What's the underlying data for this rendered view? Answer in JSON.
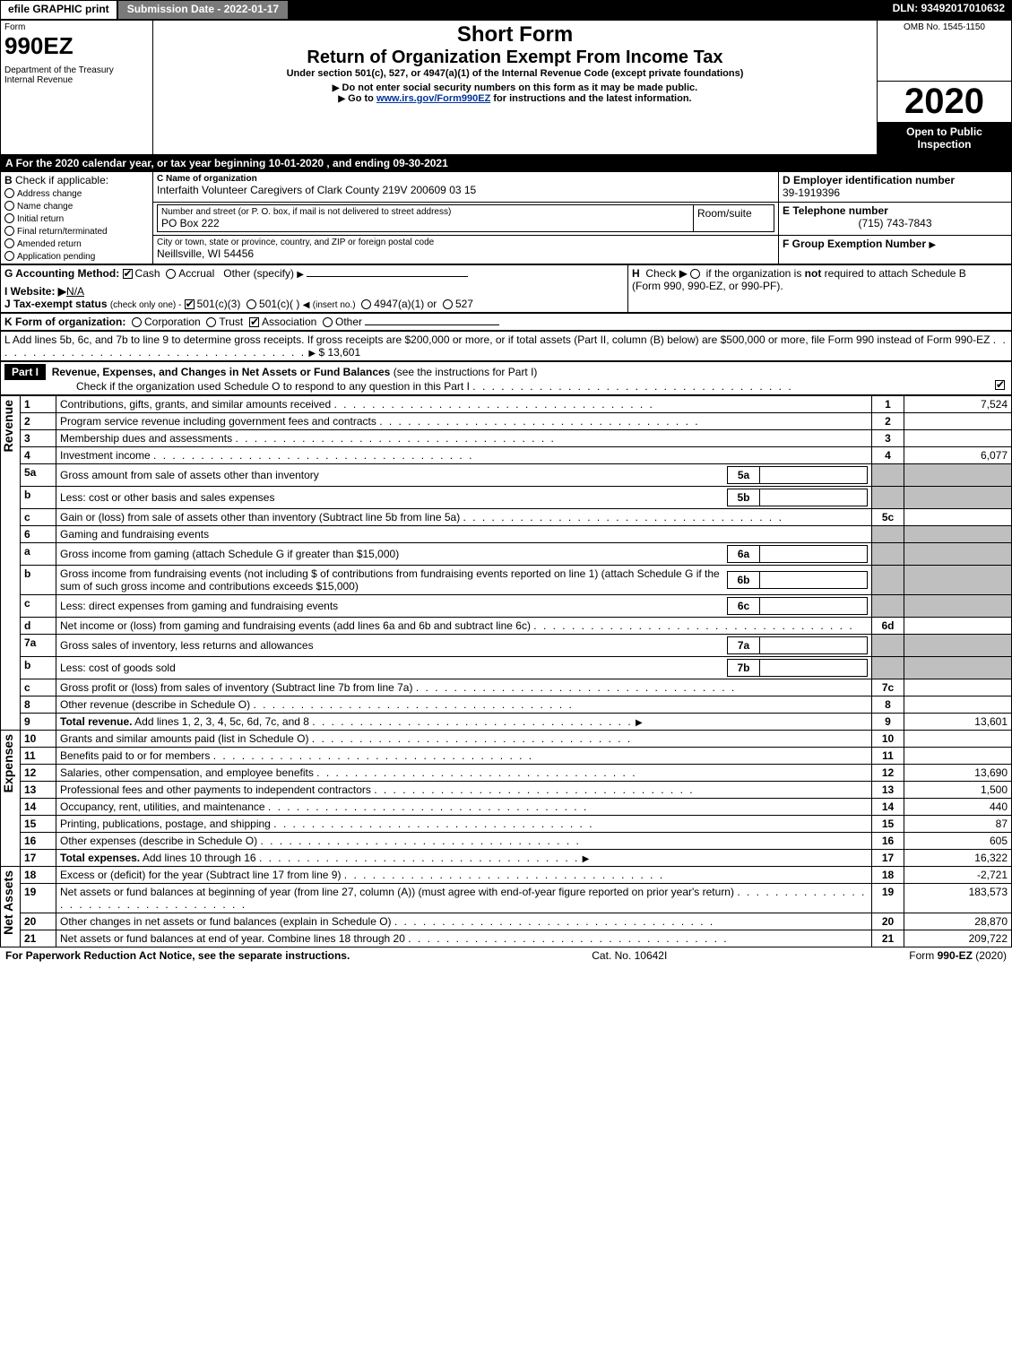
{
  "topbar": {
    "efile": "efile GRAPHIC print",
    "submission": "Submission Date - 2022-01-17",
    "dln": "DLN: 93492017010632"
  },
  "header": {
    "form_word": "Form",
    "form_no": "990EZ",
    "dept": "Department of the Treasury",
    "irs": "Internal Revenue",
    "title1": "Short Form",
    "title2": "Return of Organization Exempt From Income Tax",
    "subtitle": "Under section 501(c), 527, or 4947(a)(1) of the Internal Revenue Code (except private foundations)",
    "warn": "Do not enter social security numbers on this form as it may be made public.",
    "goto_pre": "Go to ",
    "goto_link": "www.irs.gov/Form990EZ",
    "goto_post": " for instructions and the latest information.",
    "omb": "OMB No. 1545-1150",
    "year": "2020",
    "open": "Open to Public Inspection"
  },
  "lineA": "For the 2020 calendar year, or tax year beginning 10-01-2020 , and ending 09-30-2021",
  "boxB": {
    "label": "Check if applicable:",
    "items": [
      "Address change",
      "Name change",
      "Initial return",
      "Final return/terminated",
      "Amended return",
      "Application pending"
    ]
  },
  "boxC": {
    "label": "C Name of organization",
    "name": "Interfaith Volunteer Caregivers of Clark County 219V 200609 03 15",
    "addr_label": "Number and street (or P. O. box, if mail is not delivered to street address)",
    "room_label": "Room/suite",
    "addr": "PO Box 222",
    "city_label": "City or town, state or province, country, and ZIP or foreign postal code",
    "city": "Neillsville, WI  54456"
  },
  "boxD": {
    "label": "D Employer identification number",
    "value": "39-1919396"
  },
  "boxE": {
    "label": "E Telephone number",
    "value": "(715) 743-7843"
  },
  "boxF": {
    "label": "F Group Exemption Number",
    "arrow": "▶"
  },
  "lineG": {
    "label": "G Accounting Method:",
    "cash": "Cash",
    "accrual": "Accrual",
    "other": "Other (specify)"
  },
  "lineH": {
    "label": "H",
    "text1": "Check ▶",
    "text2": "if the organization is ",
    "not": "not",
    "text3": " required to attach Schedule B",
    "text4": "(Form 990, 990-EZ, or 990-PF)."
  },
  "lineI": {
    "label": "I Website: ▶",
    "value": "N/A"
  },
  "lineJ": {
    "label": "J Tax-exempt status",
    "hint": "(check only one) -",
    "o1": "501(c)(3)",
    "o2": "501(c)(",
    "o2b": ")",
    "ins": "(insert no.)",
    "o3": "4947(a)(1) or",
    "o4": "527"
  },
  "lineK": {
    "label": "K Form of organization:",
    "o1": "Corporation",
    "o2": "Trust",
    "o3": "Association",
    "o4": "Other"
  },
  "lineL": {
    "text": "L Add lines 5b, 6c, and 7b to line 9 to determine gross receipts. If gross receipts are $200,000 or more, or if total assets (Part II, column (B) below) are $500,000 or more, file Form 990 instead of Form 990-EZ",
    "amount": "$ 13,601"
  },
  "partI": {
    "label": "Part I",
    "title": "Revenue, Expenses, and Changes in Net Assets or Fund Balances",
    "title_paren": "(see the instructions for Part I)",
    "check_line": "Check if the organization used Schedule O to respond to any question in this Part I"
  },
  "sections": {
    "revenue_label": "Revenue",
    "expenses_label": "Expenses",
    "netassets_label": "Net Assets"
  },
  "rows": [
    {
      "n": "1",
      "desc": "Contributions, gifts, grants, and similar amounts received",
      "col": "1",
      "val": "7,524"
    },
    {
      "n": "2",
      "desc": "Program service revenue including government fees and contracts",
      "col": "2",
      "val": ""
    },
    {
      "n": "3",
      "desc": "Membership dues and assessments",
      "col": "3",
      "val": ""
    },
    {
      "n": "4",
      "desc": "Investment income",
      "col": "4",
      "val": "6,077"
    },
    {
      "n": "5a",
      "desc": "Gross amount from sale of assets other than inventory",
      "inner": "5a"
    },
    {
      "n": "b",
      "desc": "Less: cost or other basis and sales expenses",
      "inner": "5b"
    },
    {
      "n": "c",
      "desc": "Gain or (loss) from sale of assets other than inventory (Subtract line 5b from line 5a)",
      "col": "5c",
      "val": ""
    },
    {
      "n": "6",
      "desc": "Gaming and fundraising events"
    },
    {
      "n": "a",
      "desc": "Gross income from gaming (attach Schedule G if greater than $15,000)",
      "inner": "6a"
    },
    {
      "n": "b",
      "desc": "Gross income from fundraising events (not including $                            of contributions from fundraising events reported on line 1) (attach Schedule G if the sum of such gross income and contributions exceeds $15,000)",
      "inner": "6b"
    },
    {
      "n": "c",
      "desc": "Less: direct expenses from gaming and fundraising events",
      "inner": "6c"
    },
    {
      "n": "d",
      "desc": "Net income or (loss) from gaming and fundraising events (add lines 6a and 6b and subtract line 6c)",
      "col": "6d",
      "val": ""
    },
    {
      "n": "7a",
      "desc": "Gross sales of inventory, less returns and allowances",
      "inner": "7a"
    },
    {
      "n": "b",
      "desc": "Less: cost of goods sold",
      "inner": "7b"
    },
    {
      "n": "c",
      "desc": "Gross profit or (loss) from sales of inventory (Subtract line 7b from line 7a)",
      "col": "7c",
      "val": ""
    },
    {
      "n": "8",
      "desc": "Other revenue (describe in Schedule O)",
      "col": "8",
      "val": ""
    },
    {
      "n": "9",
      "desc": "Total revenue. Add lines 1, 2, 3, 4, 5c, 6d, 7c, and 8",
      "bold": true,
      "arrow": true,
      "col": "9",
      "val": "13,601"
    },
    {
      "n": "10",
      "desc": "Grants and similar amounts paid (list in Schedule O)",
      "col": "10",
      "val": ""
    },
    {
      "n": "11",
      "desc": "Benefits paid to or for members",
      "col": "11",
      "val": ""
    },
    {
      "n": "12",
      "desc": "Salaries, other compensation, and employee benefits",
      "col": "12",
      "val": "13,690"
    },
    {
      "n": "13",
      "desc": "Professional fees and other payments to independent contractors",
      "col": "13",
      "val": "1,500"
    },
    {
      "n": "14",
      "desc": "Occupancy, rent, utilities, and maintenance",
      "col": "14",
      "val": "440"
    },
    {
      "n": "15",
      "desc": "Printing, publications, postage, and shipping",
      "col": "15",
      "val": "87"
    },
    {
      "n": "16",
      "desc": "Other expenses (describe in Schedule O)",
      "col": "16",
      "val": "605"
    },
    {
      "n": "17",
      "desc": "Total expenses. Add lines 10 through 16",
      "bold": true,
      "arrow": true,
      "col": "17",
      "val": "16,322"
    },
    {
      "n": "18",
      "desc": "Excess or (deficit) for the year (Subtract line 17 from line 9)",
      "col": "18",
      "val": "-2,721"
    },
    {
      "n": "19",
      "desc": "Net assets or fund balances at beginning of year (from line 27, column (A)) (must agree with end-of-year figure reported on prior year's return)",
      "col": "19",
      "val": "183,573"
    },
    {
      "n": "20",
      "desc": "Other changes in net assets or fund balances (explain in Schedule O)",
      "col": "20",
      "val": "28,870"
    },
    {
      "n": "21",
      "desc": "Net assets or fund balances at end of year. Combine lines 18 through 20",
      "col": "21",
      "val": "209,722"
    }
  ],
  "footer": {
    "left": "For Paperwork Reduction Act Notice, see the separate instructions.",
    "mid": "Cat. No. 10642I",
    "right_pre": "Form ",
    "right_bold": "990-EZ",
    "right_post": " (2020)"
  },
  "colors": {
    "black": "#000000",
    "gray_btn": "#7a7a7a",
    "shade": "#bfbfbf",
    "link": "#003399"
  }
}
